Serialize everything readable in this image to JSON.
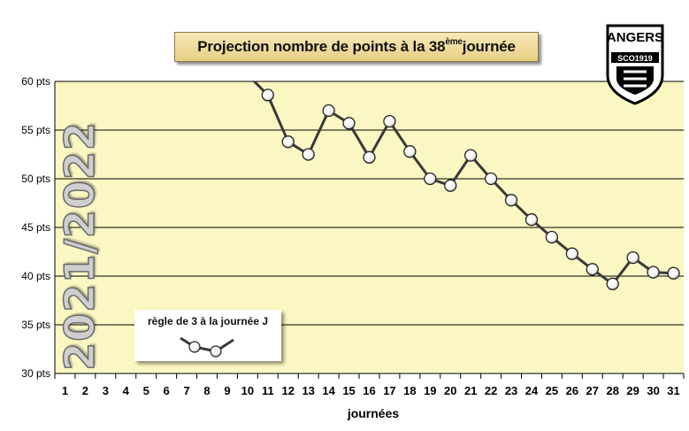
{
  "title": {
    "main": "Projection nombre de points à la  38",
    "sup": "ème",
    "tail": " journée"
  },
  "season": "2021/2022",
  "legend": {
    "label": "règle de 3 à la journée J"
  },
  "logo": {
    "name": "ANGERS",
    "sub": "SCO1919"
  },
  "colors": {
    "plot_bg": "#fbf7c2",
    "line": "#3a3a3a",
    "marker": "#ffffff"
  },
  "chart_data": {
    "type": "line",
    "xlabel": "journées",
    "ylabel": "",
    "ylim": [
      30,
      60
    ],
    "yticks": [
      30,
      35,
      40,
      45,
      50,
      55,
      60
    ],
    "ytick_suffix": " pts",
    "xlim": [
      1,
      31
    ],
    "x_categories": [
      "1",
      "2",
      "3",
      "4",
      "5",
      "6",
      "7",
      "8",
      "9",
      "10",
      "11",
      "12",
      "13",
      "14",
      "15",
      "16",
      "17",
      "18",
      "19",
      "20",
      "21",
      "22",
      "23",
      "24",
      "25",
      "26",
      "27",
      "28",
      "29",
      "30",
      "31"
    ],
    "grid": "horizontal",
    "series": [
      {
        "x": [
          10,
          11,
          12,
          13,
          14,
          15,
          16,
          17,
          18,
          19,
          20,
          21,
          22,
          23,
          24,
          25,
          26,
          27,
          28,
          29,
          30,
          31
        ],
        "values": [
          60.7,
          58.6,
          53.8,
          52.5,
          57.0,
          55.7,
          52.2,
          55.9,
          52.8,
          50.0,
          49.3,
          52.4,
          50.0,
          47.8,
          45.8,
          44.0,
          42.3,
          40.7,
          39.2,
          41.9,
          40.4,
          40.3
        ],
        "marker_from_x": 11
      }
    ]
  }
}
